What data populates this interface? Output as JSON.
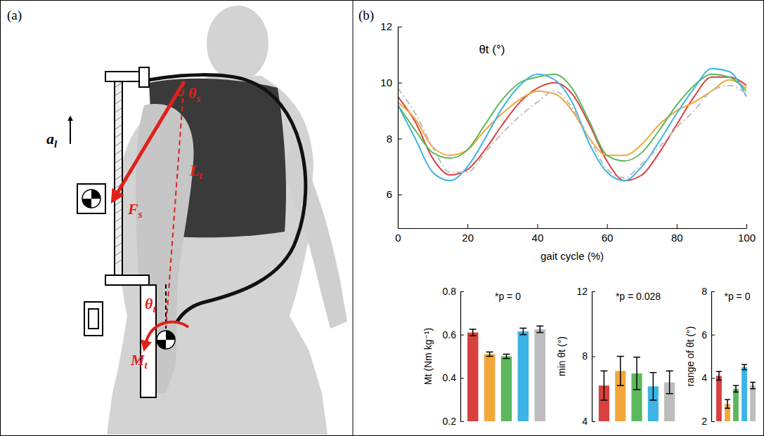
{
  "diagram": {
    "label": "(a)",
    "annotations": [
      {
        "text": "a",
        "sub": "l"
      },
      {
        "text": "F",
        "sub": "s"
      },
      {
        "text": "θ",
        "sub": "s"
      },
      {
        "text": "L",
        "sub": "t"
      },
      {
        "text": "θ",
        "sub": "t"
      },
      {
        "text": "M",
        "sub": "t"
      }
    ]
  },
  "panel_label": "(b)",
  "chart_data": [
    {
      "type": "line",
      "title": "θt (°)",
      "xlabel": "gait cycle (%)",
      "x": [
        0,
        5,
        10,
        15,
        20,
        25,
        30,
        35,
        40,
        45,
        50,
        55,
        60,
        65,
        70,
        75,
        80,
        85,
        90,
        95,
        100
      ],
      "xlim": [
        0,
        100
      ],
      "xticks": [
        0,
        20,
        40,
        60,
        80,
        100
      ],
      "ylim": [
        4.8,
        12
      ],
      "yticks": [
        6,
        8,
        10,
        12
      ],
      "series": [
        {
          "color": "#d9413f",
          "line_style": "solid",
          "values": [
            9.5,
            8.6,
            7.3,
            6.7,
            6.9,
            7.6,
            8.5,
            9.3,
            9.8,
            10.0,
            9.6,
            8.5,
            7.2,
            6.5,
            6.7,
            7.5,
            8.5,
            9.5,
            10.2,
            10.2,
            9.9
          ]
        },
        {
          "color": "#f3a73a",
          "line_style": "solid",
          "values": [
            9.3,
            8.7,
            7.7,
            7.4,
            7.6,
            8.3,
            8.9,
            9.4,
            9.7,
            9.6,
            9.0,
            8.0,
            7.4,
            7.4,
            7.8,
            8.5,
            9.0,
            9.3,
            9.7,
            10.1,
            9.8
          ]
        },
        {
          "color": "#5cb85c",
          "line_style": "solid",
          "values": [
            9.2,
            8.3,
            7.5,
            7.3,
            7.6,
            8.5,
            9.4,
            10.0,
            10.2,
            10.3,
            9.8,
            8.6,
            7.4,
            7.2,
            7.5,
            8.3,
            9.2,
            9.9,
            10.3,
            10.2,
            9.7
          ]
        },
        {
          "color": "#3cb4e5",
          "line_style": "solid",
          "values": [
            9.2,
            8.0,
            6.8,
            6.5,
            7.0,
            8.0,
            9.1,
            9.9,
            10.3,
            10.1,
            9.3,
            7.8,
            6.8,
            6.5,
            7.0,
            7.9,
            8.9,
            9.8,
            10.5,
            10.4,
            9.5
          ]
        },
        {
          "color": "#bdbdbd",
          "line_style": "dashdot",
          "values": [
            9.8,
            8.9,
            7.7,
            6.8,
            6.8,
            7.5,
            8.2,
            8.8,
            9.3,
            9.7,
            9.1,
            8.0,
            6.9,
            6.6,
            7.1,
            7.7,
            8.4,
            9.0,
            9.7,
            9.9,
            9.6
          ]
        }
      ]
    },
    {
      "type": "bar",
      "title": "*p = 0",
      "ylabel": "Mt (Nm kg⁻¹)",
      "categories": [
        null,
        null,
        null,
        null,
        null
      ],
      "values": [
        0.61,
        0.51,
        0.5,
        0.615,
        0.625
      ],
      "errors": [
        0.015,
        0.01,
        0.01,
        0.015,
        0.015
      ],
      "colors": [
        "#d9413f",
        "#f3a73a",
        "#5cb85c",
        "#3cb4e5",
        "#bdbdbd"
      ],
      "ylim": [
        0.2,
        0.8
      ],
      "yticks": [
        0.2,
        0.4,
        0.6,
        0.8
      ]
    },
    {
      "type": "bar",
      "title": "*p = 0.028",
      "ylabel": "min θt (°)",
      "categories": [
        null,
        null,
        null,
        null,
        null
      ],
      "values": [
        6.2,
        7.1,
        6.95,
        6.15,
        6.4
      ],
      "errors": [
        0.9,
        0.9,
        1.0,
        0.85,
        0.7
      ],
      "colors": [
        "#d9413f",
        "#f3a73a",
        "#5cb85c",
        "#3cb4e5",
        "#bdbdbd"
      ],
      "ylim": [
        4,
        12
      ],
      "yticks": [
        4,
        8,
        12
      ]
    },
    {
      "type": "bar",
      "title": "*p = 0",
      "ylabel": "range of θt (°)",
      "categories": [
        null,
        null,
        null,
        null,
        null
      ],
      "values": [
        4.1,
        2.8,
        3.5,
        4.5,
        3.65
      ],
      "errors": [
        0.2,
        0.2,
        0.15,
        0.12,
        0.15
      ],
      "colors": [
        "#d9413f",
        "#f3a73a",
        "#5cb85c",
        "#3cb4e5",
        "#bdbdbd"
      ],
      "ylim": [
        2,
        8
      ],
      "yticks": [
        2,
        4,
        6,
        8
      ]
    }
  ]
}
